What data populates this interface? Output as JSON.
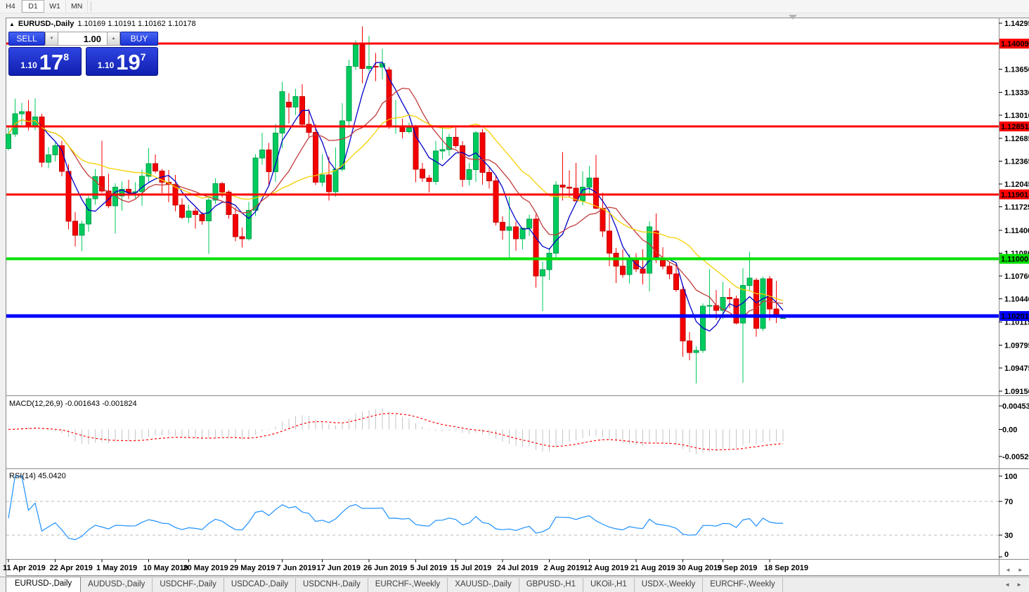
{
  "icons": {
    "up_arrow": "▲",
    "down_arrow": "▼",
    "left_arrow": "◄",
    "right_arrow": "►",
    "title_marker": "▲"
  },
  "toolbar": {
    "timeframes": [
      {
        "label": "H4",
        "active": false
      },
      {
        "label": "D1",
        "active": true
      },
      {
        "label": "W1",
        "active": false
      },
      {
        "label": "MN",
        "active": false
      }
    ]
  },
  "title": {
    "symbol_period": "EURUSD-,Daily",
    "ohlc": "1.10169 1.10191 1.10162 1.10178"
  },
  "trade_panel": {
    "sell_label": "SELL",
    "buy_label": "BUY",
    "lot_value": "1.00",
    "sell_price_prefix": "1.10",
    "sell_price_big": "17",
    "sell_price_sup": "8",
    "buy_price_prefix": "1.10",
    "buy_price_big": "19",
    "buy_price_sup": "7"
  },
  "indicators": {
    "macd_text": "MACD(12,26,9) -0.001643 -0.001824",
    "rsi_text": "RSI(14) 45.0420"
  },
  "chart_data": {
    "type": "candlestick",
    "symbol": "EURUSD-",
    "timeframe": "Daily",
    "price_axis": {
      "max": 1.14295,
      "min": 1.0915,
      "ticks": [
        "1.14295",
        "1.13650",
        "1.13330",
        "1.13010",
        "1.12685",
        "1.12365",
        "1.12045",
        "1.11725",
        "1.11400",
        "1.11080",
        "1.10760",
        "1.10440",
        "1.10115",
        "1.09795",
        "1.09475",
        "1.09150"
      ]
    },
    "hlines": [
      {
        "price": 1.14009,
        "label": "1.14009",
        "color": "#ff0000",
        "text_color": "#ffffff",
        "width": 3
      },
      {
        "price": 1.12851,
        "label": "1.12851",
        "color": "#ff0000",
        "text_color": "#ffffff",
        "width": 3
      },
      {
        "price": 1.11901,
        "label": "1.11901",
        "color": "#ff0000",
        "text_color": "#ffffff",
        "width": 3
      },
      {
        "price": 1.11,
        "label": "1.11000",
        "color": "#00e000",
        "text_color": "#000000",
        "width": 4
      },
      {
        "price": 1.10201,
        "label": "1.10201",
        "color": "#0000ff",
        "text_color": "#ffffff",
        "width": 5
      }
    ],
    "bull_fill": "#00cb5e",
    "bull_stroke": "#00a04c",
    "bear_fill": "#f40000",
    "bear_stroke": "#c40000",
    "ma": [
      {
        "period": 5,
        "color": "#0000c8"
      },
      {
        "period": 10,
        "color": "#c23b3b"
      },
      {
        "period": 21,
        "color": "#f5d000"
      }
    ],
    "candles": [
      [
        1.1254,
        1.12845,
        1.1252,
        1.12745
      ],
      [
        1.12745,
        1.1324,
        1.12705,
        1.1303
      ],
      [
        1.1303,
        1.1318,
        1.1287,
        1.1306
      ],
      [
        1.1306,
        1.1322,
        1.128,
        1.12845
      ],
      [
        1.12845,
        1.13245,
        1.128,
        1.12985
      ],
      [
        1.12985,
        1.1303,
        1.1228,
        1.1235
      ],
      [
        1.1235,
        1.1256,
        1.12265,
        1.12455
      ],
      [
        1.12455,
        1.12625,
        1.1236,
        1.1258
      ],
      [
        1.1258,
        1.1265,
        1.12155,
        1.12225
      ],
      [
        1.12225,
        1.1232,
        1.11415,
        1.11525
      ],
      [
        1.11525,
        1.11655,
        1.11175,
        1.1133
      ],
      [
        1.1133,
        1.1153,
        1.1111,
        1.11485
      ],
      [
        1.11485,
        1.1188,
        1.1138,
        1.1184
      ],
      [
        1.1184,
        1.1226,
        1.11755,
        1.1215
      ],
      [
        1.1215,
        1.1265,
        1.11925,
        1.1195
      ],
      [
        1.1195,
        1.1219,
        1.1171,
        1.1174
      ],
      [
        1.1174,
        1.12055,
        1.11355,
        1.12
      ],
      [
        1.1188,
        1.1208,
        1.11675,
        1.11975
      ],
      [
        1.11975,
        1.12105,
        1.11835,
        1.1193
      ],
      [
        1.1193,
        1.1207,
        1.11845,
        1.1194
      ],
      [
        1.1194,
        1.1225,
        1.1174,
        1.12155
      ],
      [
        1.12155,
        1.12545,
        1.1206,
        1.1233
      ],
      [
        1.1233,
        1.1246,
        1.122,
        1.1223
      ],
      [
        1.1223,
        1.1226,
        1.1192,
        1.1207
      ],
      [
        1.1207,
        1.12245,
        1.1179,
        1.1204
      ],
      [
        1.1204,
        1.12175,
        1.11665,
        1.1175
      ],
      [
        1.1175,
        1.11845,
        1.11555,
        1.1158
      ],
      [
        1.1158,
        1.11755,
        1.115,
        1.1167
      ],
      [
        1.1167,
        1.11715,
        1.11425,
        1.1162
      ],
      [
        1.1162,
        1.11655,
        1.11475,
        1.1153
      ],
      [
        1.1153,
        1.1188,
        1.1107,
        1.1182
      ],
      [
        1.1182,
        1.12125,
        1.11765,
        1.1205
      ],
      [
        1.1205,
        1.12075,
        1.1186,
        1.11935
      ],
      [
        1.11935,
        1.1196,
        1.1156,
        1.1162
      ],
      [
        1.1162,
        1.1172,
        1.11245,
        1.1131
      ],
      [
        1.1131,
        1.1144,
        1.1116,
        1.1128
      ],
      [
        1.1128,
        1.11795,
        1.11255,
        1.1168
      ],
      [
        1.1168,
        1.12465,
        1.116,
        1.1241
      ],
      [
        1.1241,
        1.12765,
        1.12315,
        1.12525
      ],
      [
        1.12525,
        1.1262,
        1.12025,
        1.1222
      ],
      [
        1.1222,
        1.12885,
        1.12075,
        1.1276
      ],
      [
        1.1276,
        1.13475,
        1.12545,
        1.1334
      ],
      [
        1.1319,
        1.1332,
        1.1289,
        1.1312
      ],
      [
        1.1312,
        1.13375,
        1.1301,
        1.1327
      ],
      [
        1.1327,
        1.1344,
        1.12845,
        1.1288
      ],
      [
        1.1288,
        1.13095,
        1.12695,
        1.1277
      ],
      [
        1.1277,
        1.1288,
        1.1203,
        1.1207
      ],
      [
        1.1207,
        1.12465,
        1.1201,
        1.12175
      ],
      [
        1.12175,
        1.1243,
        1.11815,
        1.1194
      ],
      [
        1.1194,
        1.12555,
        1.1187,
        1.12255
      ],
      [
        1.12255,
        1.13175,
        1.12225,
        1.1293
      ],
      [
        1.1293,
        1.13785,
        1.1283,
        1.1369
      ],
      [
        1.1369,
        1.14055,
        1.1364,
        1.1399
      ],
      [
        1.1399,
        1.1425,
        1.13455,
        1.1366
      ],
      [
        1.1366,
        1.14115,
        1.1362,
        1.1369
      ],
      [
        1.1369,
        1.1388,
        1.13485,
        1.1368
      ],
      [
        1.1368,
        1.13935,
        1.1351,
        1.1373
      ],
      [
        1.1364,
        1.1368,
        1.12815,
        1.1285
      ],
      [
        1.1285,
        1.1322,
        1.1275,
        1.12855
      ],
      [
        1.12855,
        1.1296,
        1.12685,
        1.1278
      ],
      [
        1.1278,
        1.12905,
        1.12755,
        1.1283
      ],
      [
        1.1283,
        1.1287,
        1.1207,
        1.12255
      ],
      [
        1.12255,
        1.1234,
        1.12075,
        1.1213
      ],
      [
        1.1213,
        1.12175,
        1.1193,
        1.1208
      ],
      [
        1.1208,
        1.1265,
        1.12035,
        1.1251
      ],
      [
        1.1251,
        1.12855,
        1.1239,
        1.1253
      ],
      [
        1.1253,
        1.1275,
        1.1244,
        1.127
      ],
      [
        1.127,
        1.12835,
        1.1255,
        1.1258
      ],
      [
        1.1258,
        1.12645,
        1.12005,
        1.1211
      ],
      [
        1.1211,
        1.1234,
        1.12025,
        1.1225
      ],
      [
        1.1225,
        1.1279,
        1.12075,
        1.12765
      ],
      [
        1.12765,
        1.12815,
        1.12035,
        1.1221
      ],
      [
        1.1221,
        1.12275,
        1.11985,
        1.1209
      ],
      [
        1.1209,
        1.12155,
        1.11465,
        1.1151
      ],
      [
        1.1151,
        1.11595,
        1.11265,
        1.114
      ],
      [
        1.114,
        1.1187,
        1.11015,
        1.1145
      ],
      [
        1.1145,
        1.1152,
        1.11115,
        1.1128
      ],
      [
        1.1128,
        1.1144,
        1.11135,
        1.1143
      ],
      [
        1.1143,
        1.1162,
        1.1132,
        1.11555
      ],
      [
        1.11555,
        1.11625,
        1.106,
        1.1076
      ],
      [
        1.1076,
        1.1096,
        1.1027,
        1.1085
      ],
      [
        1.1085,
        1.11155,
        1.107,
        1.1108
      ],
      [
        1.1108,
        1.12085,
        1.11005,
        1.1203
      ],
      [
        1.1203,
        1.12495,
        1.11815,
        1.12
      ],
      [
        1.12,
        1.1224,
        1.1186,
        1.1199
      ],
      [
        1.1199,
        1.1234,
        1.1181,
        1.1181
      ],
      [
        1.1181,
        1.12225,
        1.11745,
        1.12
      ],
      [
        1.12,
        1.123,
        1.119,
        1.1213
      ],
      [
        1.1213,
        1.12455,
        1.11695,
        1.1171
      ],
      [
        1.1171,
        1.11925,
        1.11305,
        1.1139
      ],
      [
        1.1139,
        1.11645,
        1.109,
        1.1108
      ],
      [
        1.1108,
        1.11155,
        1.1066,
        1.109
      ],
      [
        1.109,
        1.11135,
        1.10735,
        1.1078
      ],
      [
        1.1078,
        1.11065,
        1.10655,
        1.1099
      ],
      [
        1.1099,
        1.1108,
        1.10815,
        1.1086
      ],
      [
        1.1086,
        1.11135,
        1.1064,
        1.108
      ],
      [
        1.108,
        1.11525,
        1.10545,
        1.1145
      ],
      [
        1.1139,
        1.11635,
        1.1094,
        1.1101
      ],
      [
        1.1101,
        1.11165,
        1.10855,
        1.109
      ],
      [
        1.109,
        1.10955,
        1.10715,
        1.1079
      ],
      [
        1.1079,
        1.10935,
        1.1054,
        1.1057
      ],
      [
        1.1057,
        1.1064,
        1.0963,
        1.0985
      ],
      [
        1.0985,
        1.09975,
        1.0958,
        1.0969
      ],
      [
        1.0969,
        1.0978,
        1.0926,
        1.0972
      ],
      [
        1.0972,
        1.10375,
        1.09685,
        1.1034
      ],
      [
        1.1034,
        1.10855,
        1.1022,
        1.1035
      ],
      [
        1.1035,
        1.10565,
        1.1015,
        1.1028
      ],
      [
        1.1028,
        1.10675,
        1.10155,
        1.1046
      ],
      [
        1.1046,
        1.1059,
        1.1031,
        1.1044
      ],
      [
        1.1044,
        1.10485,
        1.10085,
        1.101
      ],
      [
        1.101,
        1.1087,
        1.0927,
        1.1063
      ],
      [
        1.1063,
        1.111,
        1.1055,
        1.1073
      ],
      [
        1.107,
        1.1073,
        1.0991,
        1.1003
      ],
      [
        1.1003,
        1.1075,
        1.0999,
        1.1072
      ],
      [
        1.1072,
        1.1076,
        1.10135,
        1.103
      ],
      [
        1.103,
        1.1069,
        1.101,
        1.1018
      ],
      [
        1.10169,
        1.10191,
        1.10162,
        1.10178
      ]
    ],
    "x_labels": [
      {
        "i": 0,
        "t": "11 Apr 2019"
      },
      {
        "i": 7,
        "t": "22 Apr 2019"
      },
      {
        "i": 14,
        "t": "1 May 2019"
      },
      {
        "i": 21,
        "t": "10 May 2019"
      },
      {
        "i": 27,
        "t": "20 May 2019"
      },
      {
        "i": 34,
        "t": "29 May 2019"
      },
      {
        "i": 41,
        "t": "7 Jun 2019"
      },
      {
        "i": 47,
        "t": "17 Jun 2019"
      },
      {
        "i": 54,
        "t": "26 Jun 2019"
      },
      {
        "i": 61,
        "t": "5 Jul 2019"
      },
      {
        "i": 67,
        "t": "15 Jul 2019"
      },
      {
        "i": 74,
        "t": "24 Jul 2019"
      },
      {
        "i": 81,
        "t": "2 Aug 2019"
      },
      {
        "i": 87,
        "t": "12 Aug 2019"
      },
      {
        "i": 94,
        "t": "21 Aug 2019"
      },
      {
        "i": 101,
        "t": "30 Aug 2019"
      },
      {
        "i": 107,
        "t": "9 Sep 2019"
      },
      {
        "i": 114,
        "t": "18 Sep 2019"
      }
    ],
    "macd": {
      "fast": 12,
      "slow": 26,
      "signal": 9,
      "axis_max": 0.004536,
      "axis_min": -0.005205,
      "axis_labels": [
        {
          "v": 0.004536,
          "t": "0.004536"
        },
        {
          "v": 0,
          "t": "0.00"
        },
        {
          "v": -0.005205,
          "t": "-0.005205"
        }
      ],
      "hist_color": "#c4c4c4",
      "signal_color": "#ff0000"
    },
    "rsi": {
      "period": 14,
      "levels": [
        70,
        30
      ],
      "axis_labels": [
        {
          "v": 100,
          "t": "100"
        },
        {
          "v": 70,
          "t": "70"
        },
        {
          "v": 30,
          "t": "30"
        },
        {
          "v": 0,
          "t": "0"
        }
      ],
      "color": "#1e90ff",
      "level_color": "#b8b8b8"
    }
  },
  "tabs": [
    {
      "label": "EURUSD-,Daily",
      "active": true
    },
    {
      "label": "AUDUSD-,Daily",
      "active": false
    },
    {
      "label": "USDCHF-,Daily",
      "active": false
    },
    {
      "label": "USDCAD-,Daily",
      "active": false
    },
    {
      "label": "USDCNH-,Daily",
      "active": false
    },
    {
      "label": "EURCHF-,Weekly",
      "active": false
    },
    {
      "label": "XAUUSD-,Daily",
      "active": false
    },
    {
      "label": "GBPUSD-,H1",
      "active": false
    },
    {
      "label": "UKOil-,H1",
      "active": false
    },
    {
      "label": "USDX-,Weekly",
      "active": false
    },
    {
      "label": "EURCHF-,Weekly",
      "active": false
    }
  ]
}
